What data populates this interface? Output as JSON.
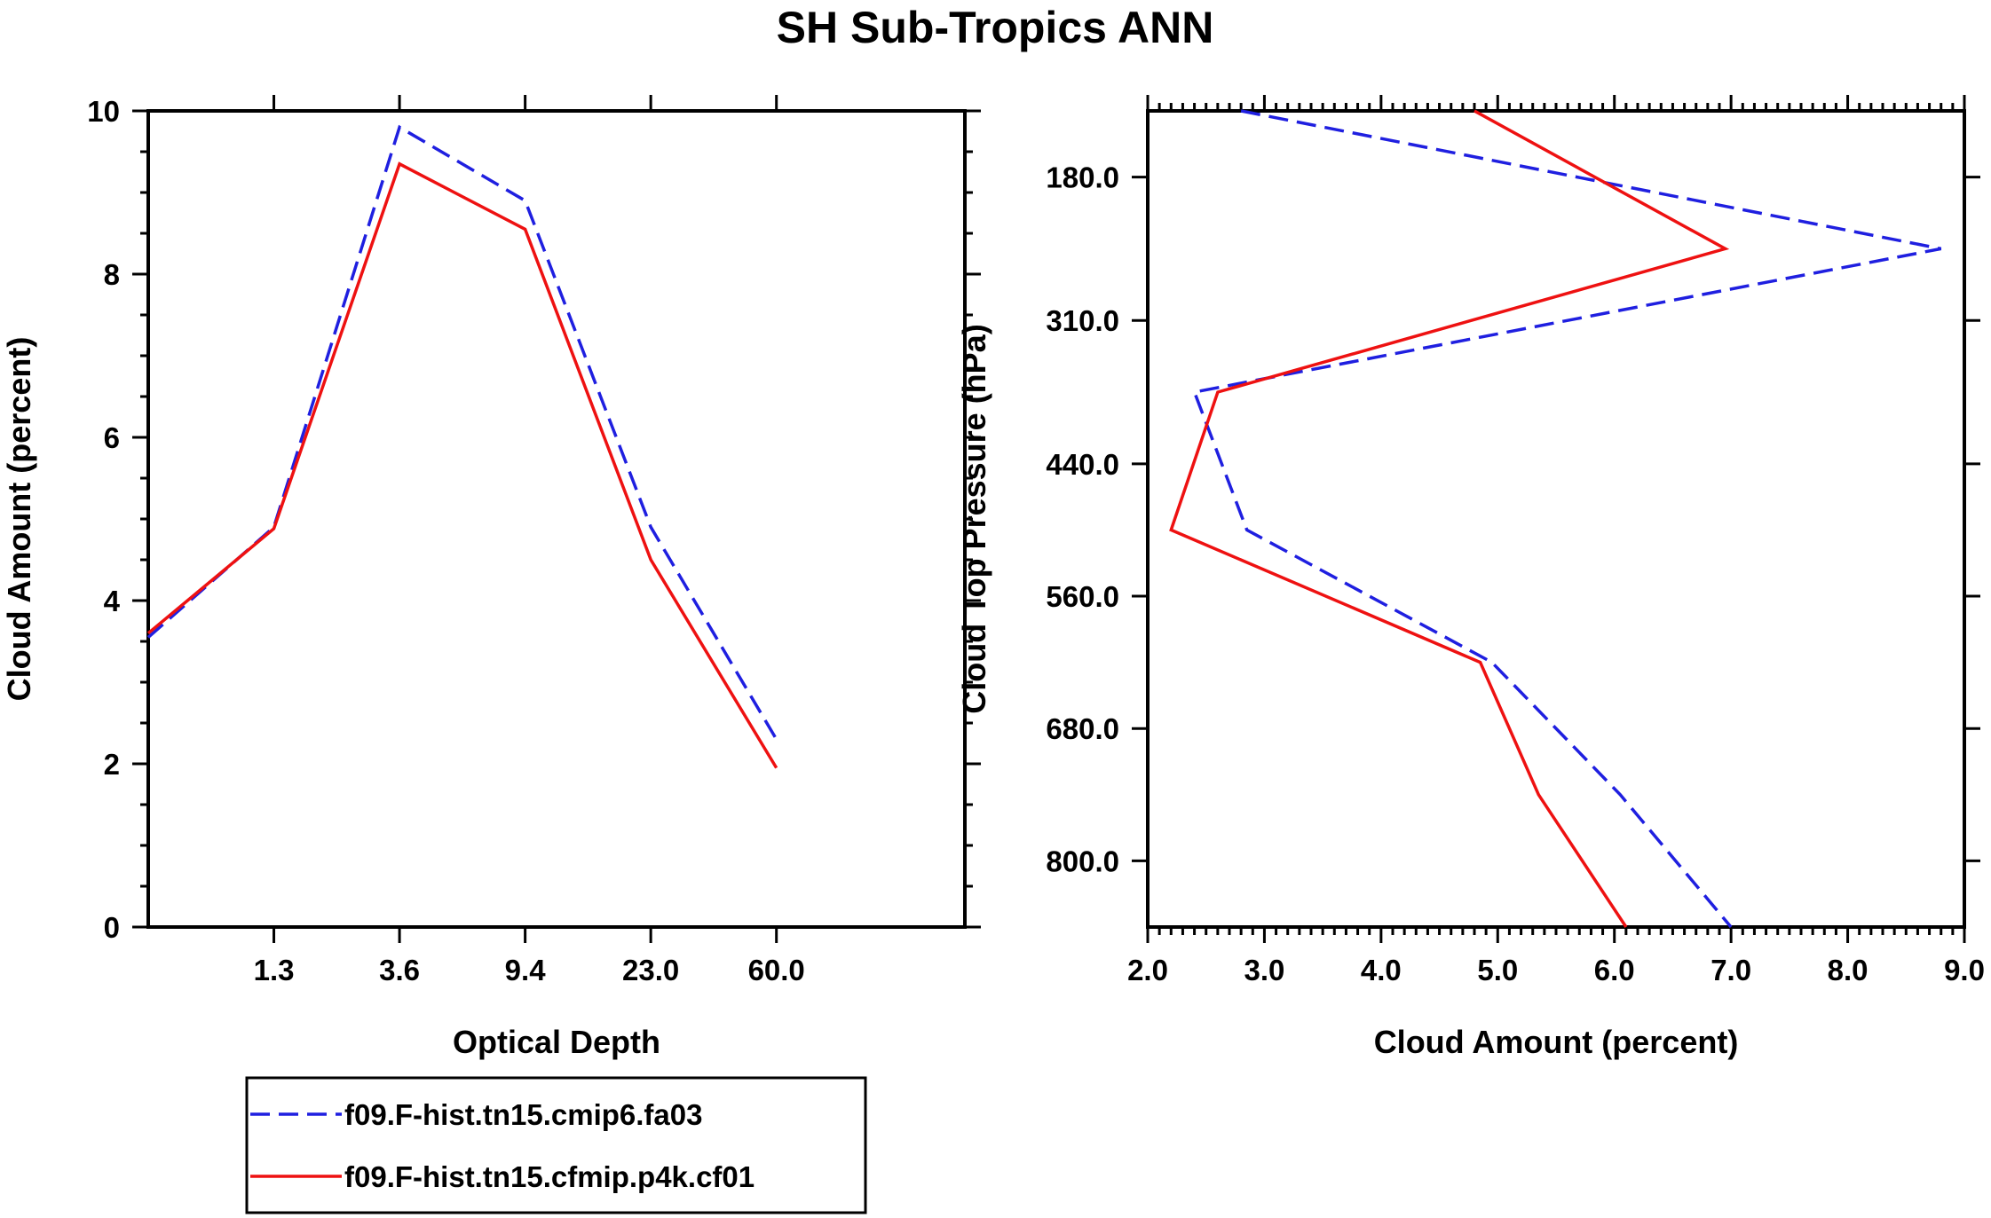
{
  "chart_data": [
    {
      "type": "line",
      "title": "SH Sub-Tropics ANN",
      "xlabel": "Optical Depth",
      "ylabel": "Cloud Amount (percent)",
      "x_tick_labels": [
        "1.3",
        "3.6",
        "9.4",
        "23.0",
        "60.0"
      ],
      "y_tick_labels": [
        "0",
        "2",
        "4",
        "6",
        "8",
        "10"
      ],
      "ylim": [
        0,
        10
      ],
      "x_bins": [
        0,
        1,
        2,
        3,
        4,
        5,
        6
      ],
      "series": [
        {
          "name": "f09.F-hist.tn15.cmip6.fa03",
          "color": "#1f1fe0",
          "dash": "dashed",
          "values": [
            3.55,
            4.9,
            9.8,
            8.9,
            4.9,
            2.3
          ]
        },
        {
          "name": "f09.F-hist.tn15.cfmip.p4k.cf01",
          "color": "#ee1111",
          "dash": "solid",
          "values": [
            3.6,
            4.88,
            9.35,
            8.55,
            4.5,
            1.95
          ]
        }
      ]
    },
    {
      "type": "line",
      "xlabel": "Cloud Amount (percent)",
      "ylabel": "Cloud Top Pressure (hPa)",
      "x_tick_labels": [
        "2.0",
        "3.0",
        "4.0",
        "5.0",
        "6.0",
        "7.0",
        "8.0",
        "9.0"
      ],
      "y_tick_labels": [
        "180.0",
        "310.0",
        "440.0",
        "560.0",
        "680.0",
        "800.0"
      ],
      "xlim": [
        2,
        9
      ],
      "pressure_levels": [
        120,
        245,
        375,
        500,
        620,
        740,
        860
      ],
      "series": [
        {
          "name": "f09.F-hist.tn15.cmip6.fa03",
          "color": "#1f1fe0",
          "dash": "dashed",
          "values": [
            2.8,
            8.8,
            2.4,
            2.85,
            4.95,
            6.05,
            7.0
          ]
        },
        {
          "name": "f09.F-hist.tn15.cfmip.p4k.cf01",
          "color": "#ee1111",
          "dash": "solid",
          "values": [
            4.8,
            6.95,
            2.6,
            2.2,
            4.85,
            5.35,
            6.1
          ]
        }
      ]
    }
  ],
  "legend": [
    {
      "label": "f09.F-hist.tn15.cmip6.fa03",
      "color": "#1f1fe0",
      "dash": "dashed"
    },
    {
      "label": "f09.F-hist.tn15.cfmip.p4k.cf01",
      "color": "#ee1111",
      "dash": "solid"
    }
  ]
}
